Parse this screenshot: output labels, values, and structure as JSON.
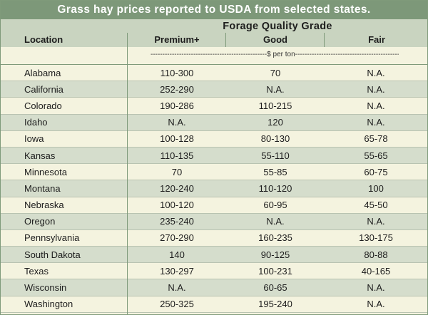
{
  "title": "Grass hay prices reported to USDA from selected states.",
  "header": {
    "group_label": "Forage Quality Grade",
    "location": "Location",
    "premium": "Premium+",
    "good": "Good",
    "fair": "Fair"
  },
  "units": "-------------------------------------------------$ per ton-------------------------------------------------",
  "rows": [
    {
      "location": "Alabama",
      "premium": "110-300",
      "good": "70",
      "fair": "N.A."
    },
    {
      "location": "California",
      "premium": "252-290",
      "good": "N.A.",
      "fair": "N.A."
    },
    {
      "location": "Colorado",
      "premium": "190-286",
      "good": "110-215",
      "fair": "N.A."
    },
    {
      "location": "Idaho",
      "premium": "N.A.",
      "good": "120",
      "fair": "N.A."
    },
    {
      "location": "Iowa",
      "premium": "100-128",
      "good": "80-130",
      "fair": "65-78"
    },
    {
      "location": "Kansas",
      "premium": "110-135",
      "good": "55-110",
      "fair": "55-65"
    },
    {
      "location": "Minnesota",
      "premium": "70",
      "good": "55-85",
      "fair": "60-75"
    },
    {
      "location": "Montana",
      "premium": "120-240",
      "good": "110-120",
      "fair": "100"
    },
    {
      "location": "Nebraska",
      "premium": "100-120",
      "good": "60-95",
      "fair": "45-50"
    },
    {
      "location": "Oregon",
      "premium": "235-240",
      "good": "N.A.",
      "fair": "N.A."
    },
    {
      "location": "Pennsylvania",
      "premium": "270-290",
      "good": "160-235",
      "fair": "130-175"
    },
    {
      "location": "South Dakota",
      "premium": "140",
      "good": "90-125",
      "fair": "80-88"
    },
    {
      "location": "Texas",
      "premium": "130-297",
      "good": "100-231",
      "fair": "40-165"
    },
    {
      "location": "Wisconsin",
      "premium": "N.A.",
      "good": "60-65",
      "fair": "N.A."
    },
    {
      "location": "Washington",
      "premium": "250-325",
      "good": "195-240",
      "fair": "N.A."
    }
  ]
}
